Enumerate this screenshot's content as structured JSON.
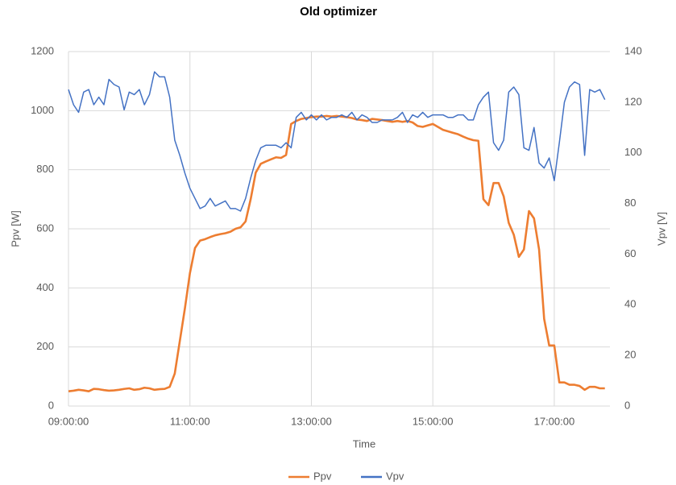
{
  "chart_data": {
    "type": "line",
    "title": "Old optimizer",
    "x_label": "Time",
    "y_label": "Ppv [W]",
    "y2_label": "Vpv [V]",
    "x": [
      "09:00:00",
      "09:05:00",
      "09:10:00",
      "09:15:00",
      "09:20:00",
      "09:25:00",
      "09:30:00",
      "09:35:00",
      "09:40:00",
      "09:45:00",
      "09:50:00",
      "09:55:00",
      "10:00:00",
      "10:05:00",
      "10:10:00",
      "10:15:00",
      "10:20:00",
      "10:25:00",
      "10:30:00",
      "10:35:00",
      "10:40:00",
      "10:45:00",
      "10:50:00",
      "10:55:00",
      "11:00:00",
      "11:05:00",
      "11:10:00",
      "11:15:00",
      "11:20:00",
      "11:25:00",
      "11:30:00",
      "11:35:00",
      "11:40:00",
      "11:45:00",
      "11:50:00",
      "11:55:00",
      "12:00:00",
      "12:05:00",
      "12:10:00",
      "12:15:00",
      "12:20:00",
      "12:25:00",
      "12:30:00",
      "12:35:00",
      "12:40:00",
      "12:45:00",
      "12:50:00",
      "12:55:00",
      "13:00:00",
      "13:05:00",
      "13:10:00",
      "13:15:00",
      "13:20:00",
      "13:25:00",
      "13:30:00",
      "13:35:00",
      "13:40:00",
      "13:45:00",
      "13:50:00",
      "13:55:00",
      "14:00:00",
      "14:05:00",
      "14:10:00",
      "14:15:00",
      "14:20:00",
      "14:25:00",
      "14:30:00",
      "14:35:00",
      "14:40:00",
      "14:45:00",
      "14:50:00",
      "14:55:00",
      "15:00:00",
      "15:05:00",
      "15:10:00",
      "15:15:00",
      "15:20:00",
      "15:25:00",
      "15:30:00",
      "15:35:00",
      "15:40:00",
      "15:45:00",
      "15:50:00",
      "15:55:00",
      "16:00:00",
      "16:05:00",
      "16:10:00",
      "16:15:00",
      "16:20:00",
      "16:25:00",
      "16:30:00",
      "16:35:00",
      "16:40:00",
      "16:45:00",
      "16:50:00",
      "16:55:00",
      "17:00:00",
      "17:05:00",
      "17:10:00",
      "17:15:00",
      "17:20:00",
      "17:25:00",
      "17:30:00",
      "17:35:00",
      "17:40:00",
      "17:45:00",
      "17:50:00"
    ],
    "xlim": [
      "09:00:00",
      "17:55:00"
    ],
    "xticks": [
      "09:00:00",
      "11:00:00",
      "13:00:00",
      "15:00:00",
      "17:00:00"
    ],
    "ylim": [
      0,
      1200
    ],
    "yticks": [
      0,
      200,
      400,
      600,
      800,
      1000,
      1200
    ],
    "y2lim": [
      0,
      140
    ],
    "y2ticks": [
      0,
      20,
      40,
      60,
      80,
      100,
      120,
      140
    ],
    "grid": true,
    "legend": "bottom",
    "series": [
      {
        "name": "Ppv",
        "color": "#ed7d31",
        "values": [
          50,
          52,
          55,
          53,
          50,
          58,
          57,
          54,
          52,
          53,
          55,
          58,
          60,
          55,
          57,
          62,
          60,
          55,
          57,
          58,
          65,
          110,
          220,
          330,
          450,
          535,
          560,
          565,
          572,
          578,
          582,
          585,
          590,
          600,
          605,
          625,
          700,
          790,
          820,
          828,
          835,
          842,
          840,
          850,
          955,
          965,
          972,
          975,
          978,
          980,
          980,
          982,
          980,
          982,
          980,
          978,
          975,
          970,
          968,
          965,
          972,
          970,
          968,
          965,
          962,
          965,
          962,
          965,
          960,
          948,
          945,
          950,
          955,
          945,
          935,
          930,
          925,
          920,
          912,
          905,
          900,
          898,
          700,
          680,
          755,
          755,
          710,
          620,
          580,
          505,
          530,
          660,
          635,
          530,
          295,
          205,
          205,
          80,
          80,
          72,
          72,
          68,
          55,
          65,
          65,
          60,
          60
        ]
      },
      {
        "name": "Vpv",
        "color": "#4472c4",
        "axis": "y2",
        "values": [
          125,
          119,
          116,
          124,
          125,
          119,
          122,
          119,
          129,
          127,
          126,
          117,
          124,
          123,
          125,
          119,
          123,
          132,
          130,
          130,
          122,
          105,
          99,
          92,
          86,
          82,
          78,
          79,
          82,
          79,
          80,
          81,
          78,
          78,
          77,
          82,
          90,
          97,
          102,
          103,
          103,
          103,
          102,
          104,
          102,
          114,
          116,
          113,
          115,
          113,
          115,
          113,
          114,
          114,
          115,
          114,
          116,
          113,
          115,
          114,
          112,
          112,
          113,
          113,
          113,
          114,
          116,
          112,
          115,
          114,
          116,
          114,
          115,
          115,
          115,
          114,
          114,
          115,
          115,
          113,
          113,
          119,
          122,
          124,
          104,
          101,
          105,
          124,
          126,
          123,
          102,
          101,
          110,
          96,
          94,
          98,
          89,
          104,
          120,
          126,
          128,
          127,
          99,
          125,
          124,
          125,
          121
        ]
      }
    ]
  }
}
